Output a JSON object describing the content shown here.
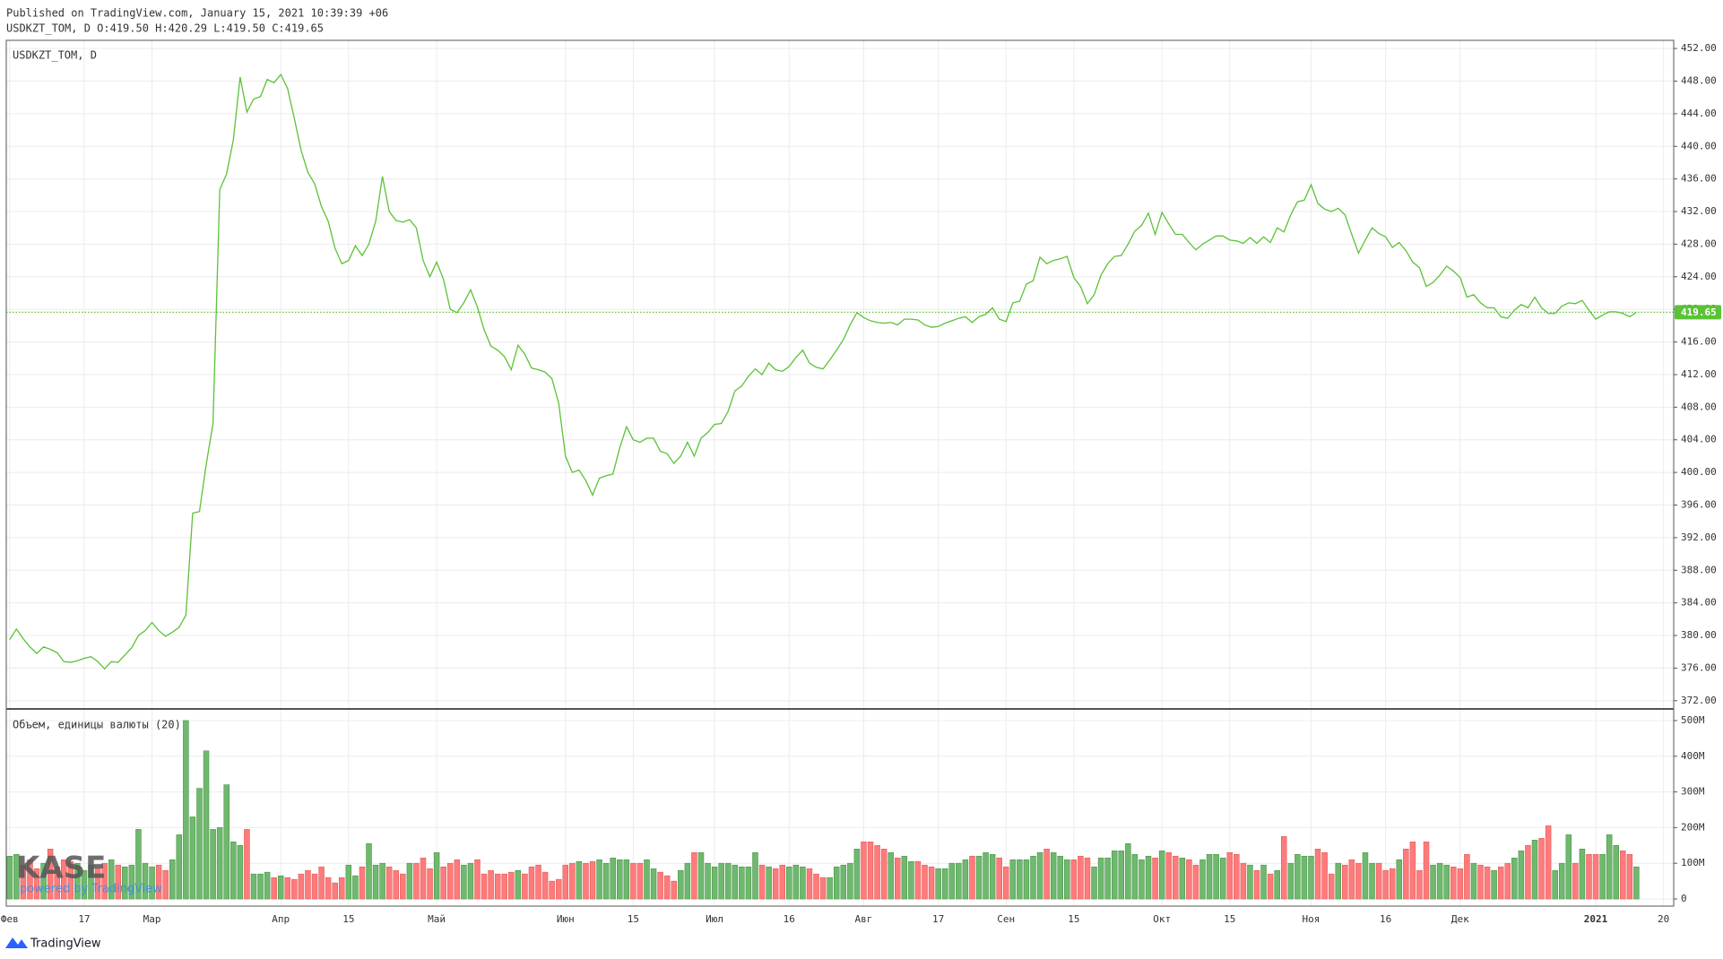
{
  "header": {
    "published": "Published on TradingView.com, January 15, 2021 10:39:39 +06",
    "ohlc": "USDKZT_TOM, D O:419.50 H:420.29 L:419.50 C:419.65"
  },
  "watermark": {
    "logo": "KASE",
    "tagline": "powered by TradingView"
  },
  "footer": {
    "brand": "TradingView"
  },
  "chart_data": [
    {
      "type": "line",
      "title": "USDKZT_TOM, D",
      "color": "#5bc236",
      "grid": true,
      "last_value_line": true,
      "categories": [
        "Фев",
        null,
        null,
        null,
        null,
        null,
        null,
        null,
        null,
        null,
        null,
        "17",
        null,
        null,
        null,
        null,
        null,
        null,
        null,
        null,
        null,
        "Мар",
        null,
        null,
        null,
        null,
        null,
        null,
        null,
        null,
        null,
        null,
        null,
        null,
        null,
        null,
        null,
        null,
        null,
        null,
        "Апр",
        null,
        null,
        null,
        null,
        null,
        null,
        null,
        null,
        null,
        "15",
        null,
        null,
        null,
        null,
        null,
        null,
        null,
        null,
        null,
        null,
        null,
        null,
        "Май",
        null,
        null,
        null,
        null,
        null,
        null,
        null,
        null,
        null,
        null,
        null,
        null,
        null,
        null,
        null,
        null,
        null,
        null,
        "Июн",
        null,
        null,
        null,
        null,
        null,
        null,
        null,
        null,
        null,
        "15",
        null,
        null,
        null,
        null,
        null,
        null,
        null,
        null,
        null,
        null,
        null,
        "Июл",
        null,
        null,
        null,
        null,
        null,
        null,
        null,
        null,
        null,
        null,
        "16",
        null,
        null,
        null,
        null,
        null,
        null,
        null,
        null,
        null,
        null,
        "Авг",
        null,
        null,
        null,
        null,
        null,
        null,
        null,
        null,
        null,
        null,
        "17",
        null,
        null,
        null,
        null,
        null,
        null,
        null,
        null,
        null,
        "Сен",
        null,
        null,
        null,
        null,
        null,
        null,
        null,
        null,
        null,
        "15",
        null,
        null,
        null,
        null,
        null,
        null,
        null,
        null,
        null,
        null,
        null,
        null,
        "Окт",
        null,
        null,
        null,
        null,
        null,
        null,
        null,
        null,
        null,
        "15",
        null,
        null,
        null,
        null,
        null,
        null,
        null,
        null,
        null,
        null,
        null,
        "Ноя",
        null,
        null,
        null,
        null,
        null,
        null,
        null,
        null,
        null,
        null,
        "16",
        null,
        null,
        null,
        null,
        null,
        null,
        null,
        null,
        null,
        null,
        "Дек",
        null,
        null,
        null,
        null,
        null,
        null,
        null,
        null,
        null,
        null,
        null,
        null,
        null,
        null,
        null,
        null,
        null,
        null,
        null,
        "2021",
        null,
        null,
        null,
        null,
        null,
        null,
        null,
        null,
        null,
        "20",
        null
      ],
      "values": [
        379.5,
        380.8,
        379.6,
        378.6,
        377.8,
        378.6,
        378.3,
        377.9,
        376.8,
        376.7,
        376.9,
        377.2,
        377.4,
        376.8,
        375.9,
        376.8,
        376.7,
        377.6,
        378.5,
        380.0,
        380.6,
        381.6,
        380.6,
        379.9,
        380.4,
        381.0,
        382.5,
        395.0,
        395.2,
        401.0,
        406.0,
        434.7,
        436.6,
        440.8,
        448.5,
        444.2,
        445.8,
        446.1,
        448.2,
        447.8,
        448.8,
        447.1,
        443.4,
        439.5,
        436.8,
        435.4,
        432.6,
        430.8,
        427.5,
        425.6,
        426.0,
        427.8,
        426.6,
        428.0,
        430.8,
        436.3,
        432.0,
        430.9,
        430.7,
        431.0,
        430.0,
        426.0,
        424.0,
        425.8,
        423.7,
        420.0,
        419.6,
        420.8,
        422.4,
        420.3,
        417.5,
        415.5,
        415.0,
        414.2,
        412.6,
        415.6,
        414.5,
        412.8,
        412.6,
        412.3,
        411.5,
        408.5,
        402.0,
        400.0,
        400.3,
        399.0,
        397.2,
        399.3,
        399.6,
        399.8,
        403.0,
        405.6,
        404.0,
        403.7,
        404.2,
        404.2,
        402.6,
        402.3,
        401.1,
        402.0,
        403.7,
        402.0,
        404.2,
        404.9,
        405.9,
        406.0,
        407.5,
        410.0,
        410.6,
        411.8,
        412.7,
        412.0,
        413.4,
        412.6,
        412.4,
        413.0,
        414.1,
        415.0,
        413.4,
        412.9,
        412.7,
        413.8,
        415.0,
        416.3,
        418.1,
        419.6,
        419.0,
        418.6,
        418.4,
        418.3,
        418.4,
        418.1,
        418.8,
        418.8,
        418.7,
        418.1,
        417.8,
        417.9,
        418.3,
        418.6,
        418.9,
        419.1,
        418.4,
        419.1,
        419.4,
        420.2,
        418.8,
        418.5,
        420.8,
        421.0,
        423.1,
        423.5,
        426.4,
        425.6,
        426.0,
        426.2,
        426.5,
        423.9,
        422.8,
        420.7,
        421.8,
        424.2,
        425.6,
        426.5,
        426.6,
        428.0,
        429.6,
        430.3,
        431.8,
        429.2,
        431.9,
        430.5,
        429.2,
        429.2,
        428.2,
        427.3,
        428.0,
        428.5,
        429.0,
        429.0,
        428.5,
        428.4,
        428.1,
        428.8,
        428.1,
        428.9,
        428.2,
        430.0,
        429.5,
        431.6,
        433.2,
        433.4,
        435.3,
        433.0,
        432.3,
        432.0,
        432.4,
        431.6,
        429.2,
        426.9,
        428.5,
        430.0,
        429.3,
        428.9,
        427.6,
        428.2,
        427.2,
        425.8,
        425.1,
        422.8,
        423.3,
        424.2,
        425.3,
        424.7,
        423.9,
        421.5,
        421.8,
        420.8,
        420.2,
        420.2,
        419.1,
        418.9,
        419.9,
        420.6,
        420.2,
        421.5,
        420.2,
        419.5,
        419.5,
        420.4,
        420.8,
        420.7,
        421.1,
        419.9,
        418.8,
        419.3,
        419.7,
        419.7,
        419.5,
        419.1,
        419.65,
        null,
        null,
        null,
        null,
        null
      ],
      "ylim": [
        371.1,
        453.0
      ],
      "yticks": [
        {
          "value": 372,
          "label": "372.00"
        },
        {
          "value": 376,
          "label": "376.00"
        },
        {
          "value": 380,
          "label": "380.00"
        },
        {
          "value": 384,
          "label": "384.00"
        },
        {
          "value": 388,
          "label": "388.00"
        },
        {
          "value": 392,
          "label": "392.00"
        },
        {
          "value": 396,
          "label": "396.00"
        },
        {
          "value": 400,
          "label": "400.00"
        },
        {
          "value": 404,
          "label": "404.00"
        },
        {
          "value": 408,
          "label": "408.00"
        },
        {
          "value": 412,
          "label": "412.00"
        },
        {
          "value": 416,
          "label": "416.00"
        },
        {
          "value": 420,
          "label": "420.00"
        },
        {
          "value": 424,
          "label": "424.00"
        },
        {
          "value": 428,
          "label": "428.00"
        },
        {
          "value": 432,
          "label": "432.00"
        },
        {
          "value": 436,
          "label": "436.00"
        },
        {
          "value": 440,
          "label": "440.00"
        },
        {
          "value": 444,
          "label": "444.00"
        },
        {
          "value": 448,
          "label": "448.00"
        },
        {
          "value": 452,
          "label": "452.00"
        }
      ]
    },
    {
      "type": "bar",
      "title": "Объем, единицы валюты (20)",
      "up_color": "#6fb96f",
      "down_color": "#ff7b7b",
      "grid": true,
      "values": [
        120000000.0,
        125000000.0,
        95000000.0,
        110000000.0,
        85000000.0,
        100000000.0,
        140000000.0,
        90000000.0,
        110000000.0,
        105000000.0,
        100000000.0,
        80000000.0,
        95000000.0,
        85000000.0,
        100000000.0,
        110000000.0,
        95000000.0,
        90000000.0,
        95000000.0,
        195000000.0,
        100000000.0,
        90000000.0,
        95000000.0,
        80000000.0,
        110000000.0,
        180000000.0,
        500000000.0,
        230000000.0,
        310000000.0,
        415000000.0,
        195000000.0,
        200000000.0,
        320000000.0,
        160000000.0,
        150000000.0,
        195000000.0,
        70000000.0,
        70000000.0,
        75000000.0,
        60000000.0,
        65000000.0,
        60000000.0,
        55000000.0,
        70000000.0,
        80000000.0,
        70000000.0,
        90000000.0,
        60000000.0,
        45000000.0,
        60000000.0,
        95000000.0,
        65000000.0,
        90000000.0,
        155000000.0,
        95000000.0,
        100000000.0,
        90000000.0,
        80000000.0,
        70000000.0,
        100000000.0,
        100000000.0,
        115000000.0,
        85000000.0,
        130000000.0,
        90000000.0,
        100000000.0,
        110000000.0,
        95000000.0,
        100000000.0,
        110000000.0,
        70000000.0,
        80000000.0,
        70000000.0,
        70000000.0,
        75000000.0,
        80000000.0,
        70000000.0,
        90000000.0,
        95000000.0,
        75000000.0,
        50000000.0,
        55000000.0,
        95000000.0,
        100000000.0,
        105000000.0,
        100000000.0,
        105000000.0,
        110000000.0,
        100000000.0,
        115000000.0,
        110000000.0,
        110000000.0,
        100000000.0,
        100000000.0,
        110000000.0,
        85000000.0,
        75000000.0,
        65000000.0,
        50000000.0,
        80000000.0,
        100000000.0,
        130000000.0,
        130000000.0,
        100000000.0,
        90000000.0,
        100000000.0,
        100000000.0,
        95000000.0,
        90000000.0,
        90000000.0,
        130000000.0,
        95000000.0,
        90000000.0,
        85000000.0,
        95000000.0,
        90000000.0,
        95000000.0,
        90000000.0,
        85000000.0,
        70000000.0,
        60000000.0,
        60000000.0,
        90000000.0,
        95000000.0,
        100000000.0,
        140000000.0,
        160000000.0,
        160000000.0,
        150000000.0,
        140000000.0,
        130000000.0,
        115000000.0,
        120000000.0,
        105000000.0,
        105000000.0,
        95000000.0,
        90000000.0,
        85000000.0,
        85000000.0,
        100000000.0,
        100000000.0,
        110000000.0,
        120000000.0,
        120000000.0,
        130000000.0,
        125000000.0,
        115000000.0,
        90000000.0,
        110000000.0,
        110000000.0,
        110000000.0,
        120000000.0,
        130000000.0,
        140000000.0,
        130000000.0,
        120000000.0,
        110000000.0,
        110000000.0,
        120000000.0,
        115000000.0,
        90000000.0,
        115000000.0,
        115000000.0,
        135000000.0,
        135000000.0,
        155000000.0,
        125000000.0,
        110000000.0,
        120000000.0,
        115000000.0,
        135000000.0,
        130000000.0,
        120000000.0,
        115000000.0,
        110000000.0,
        95000000.0,
        110000000.0,
        125000000.0,
        125000000.0,
        115000000.0,
        130000000.0,
        125000000.0,
        100000000.0,
        95000000.0,
        80000000.0,
        95000000.0,
        70000000.0,
        80000000.0,
        175000000.0,
        100000000.0,
        125000000.0,
        120000000.0,
        120000000.0,
        140000000.0,
        130000000.0,
        70000000.0,
        100000000.0,
        95000000.0,
        110000000.0,
        100000000.0,
        130000000.0,
        100000000.0,
        100000000.0,
        80000000.0,
        85000000.0,
        110000000.0,
        140000000.0,
        160000000.0,
        80000000.0,
        160000000.0,
        95000000.0,
        100000000.0,
        95000000.0,
        90000000.0,
        85000000.0,
        125000000.0,
        100000000.0,
        95000000.0,
        90000000.0,
        80000000.0,
        90000000.0,
        100000000.0,
        115000000.0,
        135000000.0,
        150000000.0,
        165000000.0,
        170000000.0,
        205000000.0,
        80000000.0,
        100000000.0,
        180000000.0,
        100000000.0,
        140000000.0,
        125000000.0,
        125000000.0,
        125000000.0,
        180000000.0,
        150000000.0,
        135000000.0,
        125000000.0,
        90000000.0,
        null,
        null,
        null,
        null,
        null
      ],
      "ylim": [
        -20000000.0,
        530000000.0
      ],
      "yticks": [
        0,
        {
          "value": 100000000.0,
          "label": "100M"
        },
        {
          "value": 200000000.0,
          "label": "200M"
        },
        {
          "value": 300000000.0,
          "label": "300M"
        },
        {
          "value": 400000000.0,
          "label": "400M"
        },
        {
          "value": 500000000.0,
          "label": "500M"
        }
      ]
    }
  ]
}
